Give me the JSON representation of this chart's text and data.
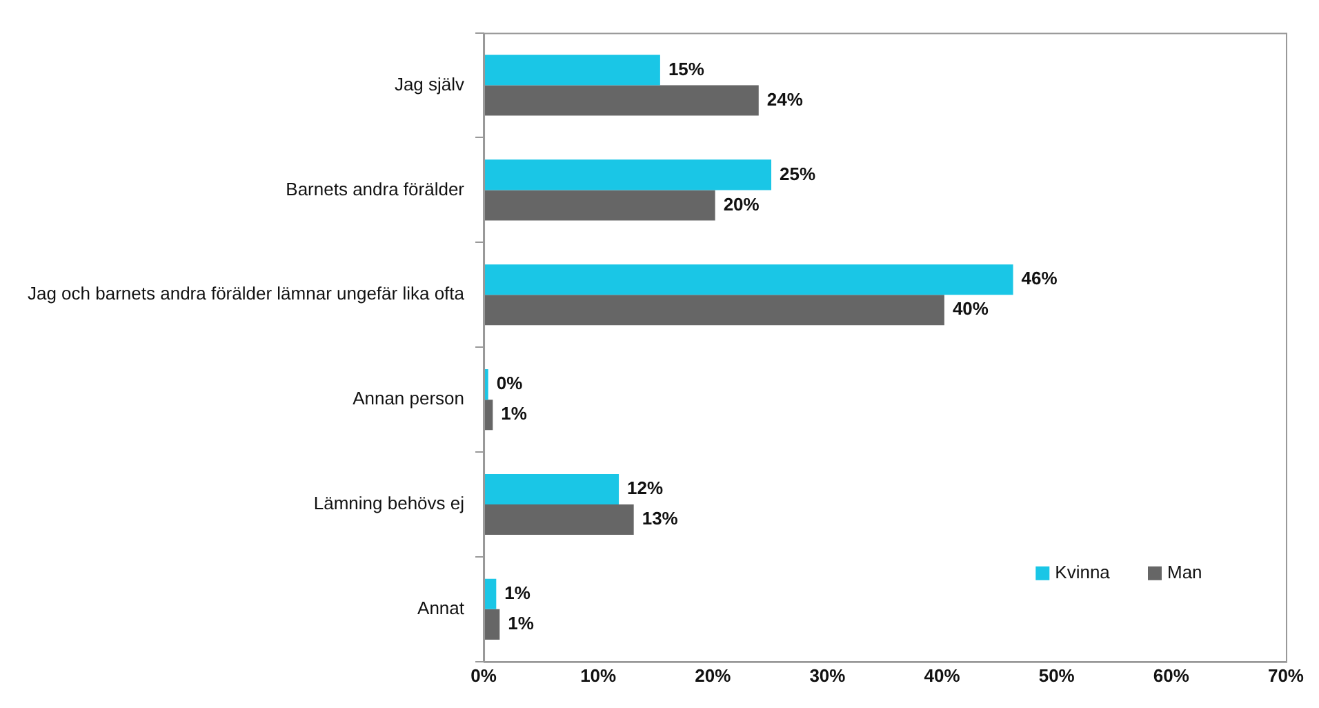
{
  "chart_data": {
    "type": "bar",
    "orientation": "horizontal",
    "categories": [
      "Jag själv",
      "Barnets andra förälder",
      "Jag och barnets andra förälder lämnar ungefär lika ofta",
      "Annan person",
      "Lämning behövs ej",
      "Annat"
    ],
    "series": [
      {
        "name": "Kvinna",
        "color": "#1ac6e6",
        "values": [
          15.4,
          25.1,
          46.2,
          0.4,
          11.8,
          1.1
        ],
        "value_labels": [
          "15%",
          "25%",
          "46%",
          "0%",
          "12%",
          "1%"
        ]
      },
      {
        "name": "Man",
        "color": "#666666",
        "values": [
          24.0,
          20.2,
          40.2,
          0.8,
          13.1,
          1.4
        ],
        "value_labels": [
          "24%",
          "20%",
          "40%",
          "1%",
          "13%",
          "1%"
        ]
      }
    ],
    "xlim": [
      0,
      70
    ],
    "xticks": [
      {
        "value": 0,
        "label": "0%"
      },
      {
        "value": 10,
        "label": "10%"
      },
      {
        "value": 20,
        "label": "20%"
      },
      {
        "value": 30,
        "label": "30%"
      },
      {
        "value": 40,
        "label": "40%"
      },
      {
        "value": 50,
        "label": "50%"
      },
      {
        "value": 60,
        "label": "60%"
      },
      {
        "value": 70,
        "label": "70%"
      }
    ],
    "grid": false,
    "legend": "bottom right"
  }
}
